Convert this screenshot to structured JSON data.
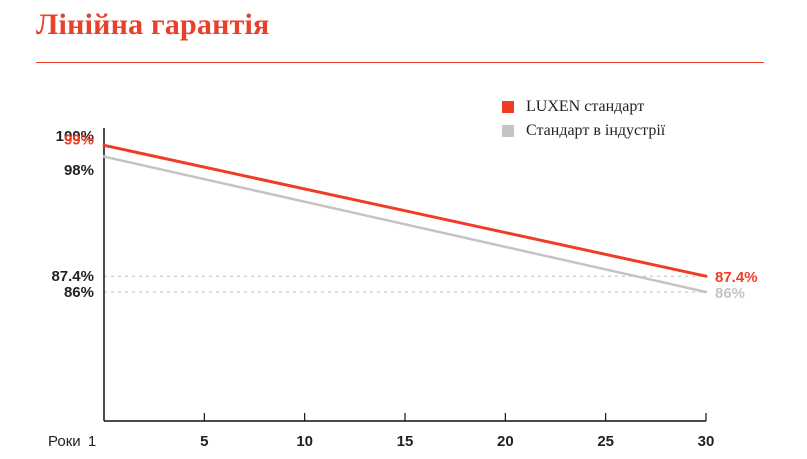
{
  "title": "Лінійна гарантія",
  "chart_data": {
    "type": "line",
    "x_axis_label": "Роки",
    "x_start_label": "1",
    "x_ticks": [
      5,
      10,
      15,
      20,
      25,
      30
    ],
    "xlim": [
      0,
      30
    ],
    "y_labels": [
      "100%",
      "98%",
      "87.4%",
      "86%"
    ],
    "y_label_values": [
      100,
      98,
      87.4,
      86
    ],
    "ylim": [
      75,
      100
    ],
    "guide_lines": [
      87.4,
      86
    ],
    "series": [
      {
        "name": "LUXEN стандарт",
        "color": "#f03c24",
        "x": [
          0,
          30
        ],
        "y": [
          99,
          87.4
        ],
        "start_label": "99%",
        "end_label": "87.4%"
      },
      {
        "name": "Стандарт в індустрії",
        "color": "#c4c4c4",
        "x": [
          0,
          30
        ],
        "y": [
          98,
          86
        ],
        "end_label": "86%"
      }
    ],
    "legend_position": "top-right"
  }
}
